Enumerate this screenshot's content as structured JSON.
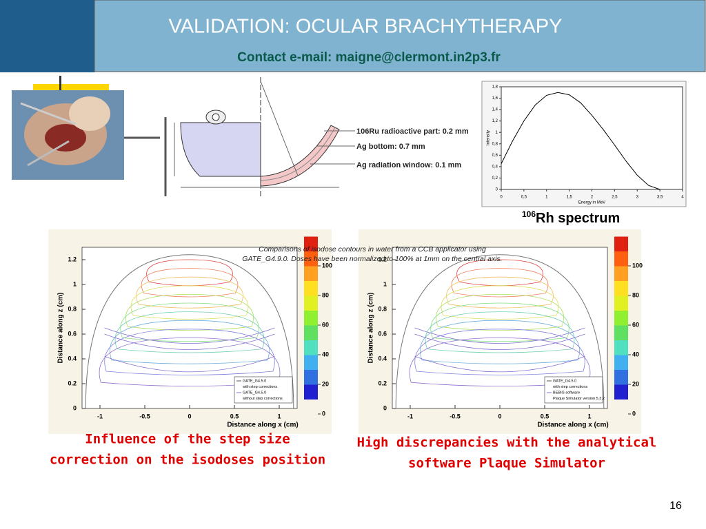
{
  "header": {
    "title": "VALIDATION: OCULAR BRACHYTHERAPY",
    "subtitle": "Contact e-mail: maigne@clermont.in2p3.fr"
  },
  "diagram": {
    "labels": [
      "106Ru radioactive part: 0.2 mm",
      "Ag bottom: 0.7 mm",
      "Ag radiation window: 0.1 mm"
    ]
  },
  "spectrum": {
    "type": "line",
    "caption_sup": "106",
    "caption": "Rh spectrum",
    "x_label": "Energy in MeV",
    "y_label": "Intensity",
    "color": "#000000",
    "x": [
      0,
      0.25,
      0.5,
      0.75,
      1,
      1.25,
      1.5,
      1.75,
      2,
      2.25,
      2.5,
      2.75,
      3,
      3.25,
      3.5
    ],
    "values": [
      0.45,
      0.85,
      1.2,
      1.48,
      1.65,
      1.7,
      1.66,
      1.52,
      1.3,
      1.05,
      0.78,
      0.5,
      0.25,
      0.07,
      0
    ],
    "xlim": [
      0,
      4
    ],
    "ylim": [
      0,
      1.8
    ],
    "xticks": [
      0,
      {
        "value": 0.5,
        "label": "0,5"
      },
      1,
      {
        "value": 1.5,
        "label": "1,5"
      },
      2,
      {
        "value": 2.5,
        "label": "2,5"
      },
      3,
      {
        "value": 3.5,
        "label": "3,5"
      },
      4
    ],
    "yticks": [
      0,
      {
        "value": 0.2,
        "label": "0,2"
      },
      {
        "value": 0.4,
        "label": "0,4"
      },
      {
        "value": 0.6,
        "label": "0,6"
      },
      {
        "value": 0.8,
        "label": "0,8"
      },
      1,
      {
        "value": 1.2,
        "label": "1,2"
      },
      {
        "value": 1.4,
        "label": "1,4"
      },
      {
        "value": 1.6,
        "label": "1,6"
      },
      {
        "value": 1.8,
        "label": "1,8"
      }
    ]
  },
  "comparison_note": [
    "Comparisons of isodose contours in water from a CCB applicator using",
    "GATE_G4.9.0. Doses have been normalized to 100% at 1mm on the central axis."
  ],
  "plots": [
    {
      "x_label": "Distance along x (cm)",
      "y_label": "Distance along z (cm)",
      "xlim": [
        -1.2,
        1.2
      ],
      "ylim": [
        0,
        1.3
      ],
      "xticks": [
        -1,
        -0.5,
        0,
        0.5,
        1
      ],
      "yticks": [
        0,
        0.2,
        0.4,
        0.6,
        0.8,
        1,
        1.2
      ],
      "colorbar_ticks": [
        0,
        20,
        40,
        60,
        80,
        100
      ],
      "legend": [
        "GATE_G4.5.0",
        "with step corrections",
        "GATE_G4.5.0",
        "without step corrections"
      ],
      "caption": [
        "Influence of the step size",
        "correction on the isodoses position"
      ]
    },
    {
      "x_label": "Distance along x (cm)",
      "y_label": "Distance along z (cm)",
      "xlim": [
        -1.2,
        1.2
      ],
      "ylim": [
        0,
        1.3
      ],
      "xticks": [
        -1,
        -0.5,
        0,
        0.5,
        1
      ],
      "yticks": [
        0,
        0.2,
        0.4,
        0.6,
        0.8,
        1,
        1.2
      ],
      "colorbar_ticks": [
        0,
        20,
        40,
        60,
        80,
        100
      ],
      "legend": [
        "GATE_G4.5.0",
        "with step corrections",
        "BEBIG software",
        "Plaque Simulator version 5.3.2"
      ],
      "caption": [
        "High discrepancies with the analytical",
        "software Plaque Simulator"
      ]
    }
  ],
  "page_number": "16"
}
